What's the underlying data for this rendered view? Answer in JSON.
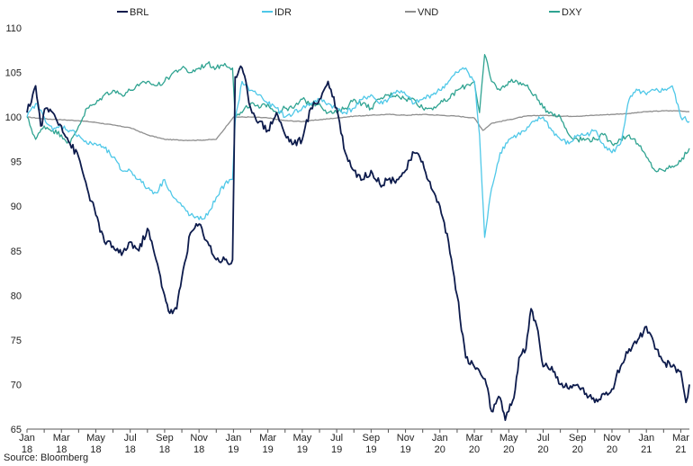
{
  "source": "Source: Bloomberg",
  "chart_data": {
    "type": "line",
    "title": "",
    "xlabel": "",
    "ylabel": "",
    "ylim": [
      65,
      110
    ],
    "yticks": [
      65,
      70,
      75,
      80,
      85,
      90,
      95,
      100,
      105,
      110
    ],
    "xlim": [
      0,
      38.5
    ],
    "grid": false,
    "legend_position": "top",
    "xticks": [
      {
        "x": 0,
        "line1": "Jan",
        "line2": "18"
      },
      {
        "x": 2,
        "line1": "Mar",
        "line2": "18"
      },
      {
        "x": 4,
        "line1": "May",
        "line2": "18"
      },
      {
        "x": 6,
        "line1": "Jul",
        "line2": "18"
      },
      {
        "x": 8,
        "line1": "Sep",
        "line2": "18"
      },
      {
        "x": 10,
        "line1": "Nov",
        "line2": "18"
      },
      {
        "x": 12,
        "line1": "Jan",
        "line2": "19"
      },
      {
        "x": 14,
        "line1": "Mar",
        "line2": "19"
      },
      {
        "x": 16,
        "line1": "May",
        "line2": "19"
      },
      {
        "x": 18,
        "line1": "Jul",
        "line2": "19"
      },
      {
        "x": 20,
        "line1": "Sep",
        "line2": "19"
      },
      {
        "x": 22,
        "line1": "Nov",
        "line2": "19"
      },
      {
        "x": 24,
        "line1": "Jan",
        "line2": "20"
      },
      {
        "x": 26,
        "line1": "Mar",
        "line2": "20"
      },
      {
        "x": 28,
        "line1": "May",
        "line2": "20"
      },
      {
        "x": 30,
        "line1": "Jul",
        "line2": "20"
      },
      {
        "x": 32,
        "line1": "Sep",
        "line2": "20"
      },
      {
        "x": 34,
        "line1": "Nov",
        "line2": "20"
      },
      {
        "x": 36,
        "line1": "Jan",
        "line2": "21"
      },
      {
        "x": 38,
        "line1": "Mar",
        "line2": "21"
      }
    ],
    "series": [
      {
        "name": "BRL",
        "color": "#0d1b4c",
        "x": [
          0,
          0.5,
          0.8,
          1.1,
          1.5,
          2,
          2.5,
          3,
          3.5,
          4,
          4.5,
          5,
          5.5,
          6,
          6.5,
          7,
          7.5,
          8,
          8.3,
          8.7,
          9,
          9.5,
          10,
          10.5,
          11,
          11.5,
          11.8,
          11.95,
          12.1,
          12.5,
          12.8,
          13,
          13.5,
          14,
          14.5,
          15,
          15.5,
          16,
          16.5,
          17,
          17.5,
          18,
          18.5,
          19,
          19.5,
          20,
          20.5,
          21,
          21.5,
          22,
          22.5,
          23,
          23.5,
          24,
          24.5,
          25,
          25.5,
          26,
          26.3,
          26.7,
          27,
          27.5,
          27.8,
          28,
          28.3,
          28.6,
          29,
          29.3,
          29.7,
          30,
          30.5,
          31,
          31.5,
          32,
          32.5,
          33,
          33.5,
          34,
          34.5,
          35,
          35.5,
          36,
          36.5,
          37,
          37.5,
          38,
          38.3,
          38.5
        ],
        "values": [
          100.5,
          103.5,
          99,
          101,
          100.5,
          99,
          97,
          95.5,
          92,
          89,
          86,
          85.5,
          84.5,
          86,
          85,
          87.5,
          84,
          80,
          78,
          78.5,
          82,
          87,
          88,
          86,
          84,
          84,
          83.5,
          84,
          104.5,
          105.5,
          103,
          101,
          99.5,
          98.5,
          100.5,
          98,
          97,
          97.5,
          101,
          102,
          104,
          101,
          96,
          94,
          93,
          94,
          92.5,
          93,
          93,
          94,
          96,
          95,
          92,
          90,
          86,
          80,
          73,
          72,
          71.5,
          70,
          67,
          68.5,
          66,
          67,
          68.5,
          73,
          74,
          78.5,
          76,
          72,
          72,
          70,
          69.5,
          70,
          69,
          68,
          69,
          69.5,
          72,
          74,
          75,
          76.5,
          74,
          72.5,
          72,
          71.5,
          68,
          70
        ]
      },
      {
        "name": "IDR",
        "color": "#4fc8e8",
        "x": [
          0,
          0.5,
          1,
          1.5,
          2,
          2.5,
          3,
          3.5,
          4,
          4.5,
          5,
          5.5,
          6,
          6.5,
          7,
          7.5,
          8,
          8.5,
          9,
          9.5,
          10,
          10.5,
          11,
          11.5,
          11.95,
          12.1,
          12.5,
          13,
          13.5,
          14,
          14.5,
          15,
          15.5,
          16,
          16.5,
          17,
          17.5,
          18,
          18.5,
          19,
          19.5,
          20,
          20.5,
          21,
          21.5,
          22,
          22.5,
          23,
          23.5,
          24,
          24.5,
          25,
          25.5,
          26,
          26.3,
          26.6,
          27,
          27.5,
          28,
          28.5,
          29,
          29.5,
          30,
          30.5,
          31,
          31.5,
          32,
          32.5,
          33,
          33.5,
          34,
          34.5,
          35,
          35.5,
          36,
          36.5,
          37,
          37.5,
          38,
          38.5
        ],
        "values": [
          100,
          101.5,
          100,
          98.5,
          99,
          98.5,
          98,
          97,
          97,
          96.5,
          95.5,
          94,
          94,
          93,
          92,
          91.5,
          93,
          91,
          90,
          89,
          88.5,
          89,
          91,
          92.5,
          93,
          99.5,
          104,
          103,
          102.5,
          101.5,
          101,
          100,
          100.5,
          101,
          101.5,
          102,
          101.5,
          101,
          100.5,
          101,
          102,
          102.5,
          101.5,
          102,
          103,
          102.5,
          101.5,
          102,
          102.5,
          103,
          104,
          105,
          105.5,
          104,
          98,
          86.5,
          92,
          96,
          97.5,
          98,
          98.5,
          99.5,
          100,
          98.5,
          97.5,
          97,
          98,
          98,
          98.5,
          97,
          96,
          97,
          102,
          103,
          102.5,
          103,
          103,
          103.5,
          100,
          99.5
        ]
      },
      {
        "name": "VND",
        "color": "#8e8e8e",
        "x": [
          0,
          1,
          2,
          3,
          4,
          5,
          6,
          7,
          8,
          9,
          10,
          11,
          12,
          13,
          14,
          15,
          16,
          17,
          18,
          19,
          20,
          21,
          22,
          23,
          24,
          25,
          26,
          26.5,
          27,
          27.5,
          28,
          29,
          30,
          31,
          32,
          33,
          34,
          35,
          36,
          37,
          38,
          38.5
        ],
        "values": [
          100,
          99.8,
          99.7,
          99.6,
          99.4,
          99.1,
          98.8,
          98,
          97.5,
          97.4,
          97.4,
          97.5,
          100,
          100,
          99.9,
          99.6,
          99.5,
          99.7,
          99.9,
          100.1,
          100.2,
          100.3,
          100.2,
          100.3,
          100.2,
          100.1,
          99.9,
          98.5,
          99.3,
          99.5,
          99.7,
          100.1,
          100.2,
          100.1,
          100.1,
          100.2,
          100.3,
          100.4,
          100.6,
          100.7,
          100.7,
          100.6
        ]
      },
      {
        "name": "DXY",
        "color": "#2fa391",
        "x": [
          0,
          0.5,
          1,
          1.5,
          2,
          2.5,
          3,
          3.5,
          4,
          4.5,
          5,
          5.5,
          6,
          6.5,
          7,
          7.5,
          8,
          8.5,
          9,
          9.5,
          10,
          10.5,
          11,
          11.5,
          11.95,
          12.1,
          12.5,
          13,
          13.5,
          14,
          14.5,
          15,
          15.5,
          16,
          16.5,
          17,
          17.5,
          18,
          18.5,
          19,
          19.5,
          20,
          20.5,
          21,
          21.5,
          22,
          22.5,
          23,
          23.5,
          24,
          24.5,
          25,
          25.5,
          26,
          26.3,
          26.6,
          27,
          27.5,
          28,
          28.5,
          29,
          29.5,
          30,
          30.5,
          31,
          31.5,
          32,
          32.5,
          33,
          33.5,
          34,
          34.5,
          35,
          35.5,
          36,
          36.5,
          37,
          37.5,
          38,
          38.5
        ],
        "values": [
          100,
          97.5,
          99,
          98.5,
          98,
          97,
          99,
          101,
          101.5,
          102.5,
          103,
          102.5,
          103,
          103.5,
          104,
          103.5,
          104,
          105,
          105.5,
          105,
          105.5,
          106,
          105.5,
          106,
          105.5,
          100,
          100.5,
          101.5,
          101,
          101.5,
          100.5,
          101,
          101,
          102,
          101.5,
          101.5,
          100.5,
          100.5,
          101,
          102,
          101.5,
          101,
          102,
          102.5,
          102.5,
          102,
          102,
          101,
          101,
          101.5,
          102,
          103,
          103.5,
          104,
          100.5,
          107,
          104,
          103,
          104,
          104,
          103.5,
          102.5,
          101,
          100.5,
          100,
          98,
          97.5,
          97.5,
          97.5,
          98,
          97,
          97.5,
          98,
          97,
          95.5,
          94,
          94,
          94.5,
          95,
          96.5
        ]
      }
    ]
  }
}
